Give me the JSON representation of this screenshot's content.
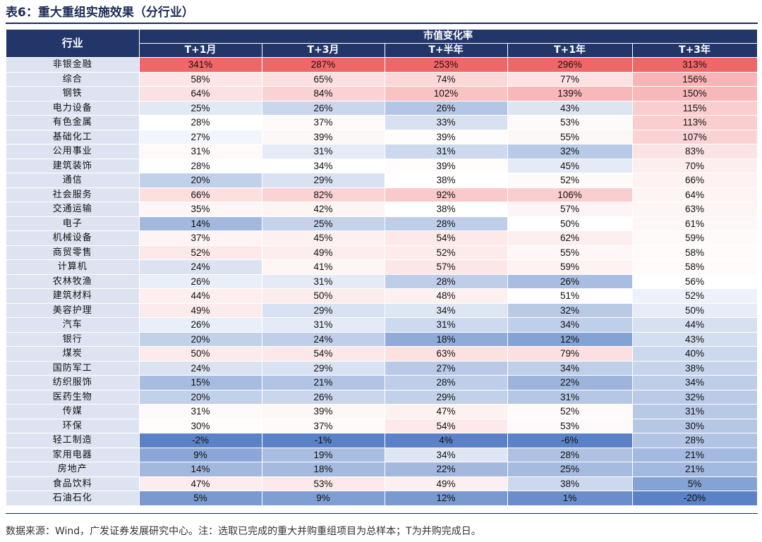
{
  "title": "表6：重大重组实施效果（分行业）",
  "note": "数据来源：Wind，广发证券发展研究中心。注：选取已完成的重大并购重组项目为总样本；T为并购完成日。",
  "table": {
    "industry_header": "行业",
    "group_header": "市值变化率",
    "columns": [
      "T+1月",
      "T+3月",
      "T+半年",
      "T+1年",
      "T+3年"
    ],
    "rows": [
      {
        "industry": "非银金融",
        "values": [
          "341%",
          "287%",
          "253%",
          "296%",
          "313%"
        ]
      },
      {
        "industry": "综合",
        "values": [
          "58%",
          "65%",
          "74%",
          "77%",
          "156%"
        ]
      },
      {
        "industry": "钢铁",
        "values": [
          "64%",
          "84%",
          "102%",
          "139%",
          "150%"
        ]
      },
      {
        "industry": "电力设备",
        "values": [
          "25%",
          "26%",
          "26%",
          "43%",
          "115%"
        ]
      },
      {
        "industry": "有色金属",
        "values": [
          "28%",
          "37%",
          "33%",
          "53%",
          "113%"
        ]
      },
      {
        "industry": "基础化工",
        "values": [
          "27%",
          "39%",
          "39%",
          "55%",
          "107%"
        ]
      },
      {
        "industry": "公用事业",
        "values": [
          "31%",
          "31%",
          "31%",
          "32%",
          "83%"
        ]
      },
      {
        "industry": "建筑装饰",
        "values": [
          "28%",
          "34%",
          "39%",
          "45%",
          "70%"
        ]
      },
      {
        "industry": "通信",
        "values": [
          "20%",
          "29%",
          "38%",
          "52%",
          "66%"
        ]
      },
      {
        "industry": "社会服务",
        "values": [
          "66%",
          "82%",
          "92%",
          "106%",
          "64%"
        ]
      },
      {
        "industry": "交通运输",
        "values": [
          "35%",
          "42%",
          "38%",
          "57%",
          "63%"
        ]
      },
      {
        "industry": "电子",
        "values": [
          "14%",
          "25%",
          "28%",
          "50%",
          "61%"
        ]
      },
      {
        "industry": "机械设备",
        "values": [
          "37%",
          "45%",
          "54%",
          "62%",
          "59%"
        ]
      },
      {
        "industry": "商贸零售",
        "values": [
          "52%",
          "49%",
          "52%",
          "55%",
          "58%"
        ]
      },
      {
        "industry": "计算机",
        "values": [
          "24%",
          "41%",
          "57%",
          "59%",
          "58%"
        ]
      },
      {
        "industry": "农林牧渔",
        "values": [
          "26%",
          "31%",
          "28%",
          "26%",
          "56%"
        ]
      },
      {
        "industry": "建筑材料",
        "values": [
          "44%",
          "50%",
          "48%",
          "51%",
          "52%"
        ]
      },
      {
        "industry": "美容护理",
        "values": [
          "49%",
          "29%",
          "34%",
          "32%",
          "50%"
        ]
      },
      {
        "industry": "汽车",
        "values": [
          "26%",
          "31%",
          "31%",
          "34%",
          "44%"
        ]
      },
      {
        "industry": "银行",
        "values": [
          "20%",
          "24%",
          "18%",
          "12%",
          "43%"
        ]
      },
      {
        "industry": "煤炭",
        "values": [
          "50%",
          "54%",
          "63%",
          "79%",
          "40%"
        ]
      },
      {
        "industry": "国防军工",
        "values": [
          "24%",
          "29%",
          "27%",
          "34%",
          "38%"
        ]
      },
      {
        "industry": "纺织服饰",
        "values": [
          "15%",
          "21%",
          "28%",
          "22%",
          "34%"
        ]
      },
      {
        "industry": "医药生物",
        "values": [
          "20%",
          "26%",
          "29%",
          "31%",
          "32%"
        ]
      },
      {
        "industry": "传媒",
        "values": [
          "31%",
          "39%",
          "47%",
          "52%",
          "31%"
        ]
      },
      {
        "industry": "环保",
        "values": [
          "30%",
          "37%",
          "54%",
          "53%",
          "30%"
        ]
      },
      {
        "industry": "轻工制造",
        "values": [
          "-2%",
          "-1%",
          "4%",
          "-6%",
          "28%"
        ]
      },
      {
        "industry": "家用电器",
        "values": [
          "9%",
          "19%",
          "34%",
          "28%",
          "21%"
        ]
      },
      {
        "industry": "房地产",
        "values": [
          "14%",
          "18%",
          "22%",
          "25%",
          "21%"
        ]
      },
      {
        "industry": "食品饮料",
        "values": [
          "47%",
          "53%",
          "49%",
          "38%",
          "5%"
        ]
      },
      {
        "industry": "石油石化",
        "values": [
          "5%",
          "9%",
          "12%",
          "1%",
          "-20%"
        ]
      }
    ]
  },
  "colors": {
    "header_bg": "#223669",
    "industry_bg": "#dde3f1",
    "high": "#f0676a",
    "mid": "#ffffff",
    "low": "#5b82c6"
  }
}
